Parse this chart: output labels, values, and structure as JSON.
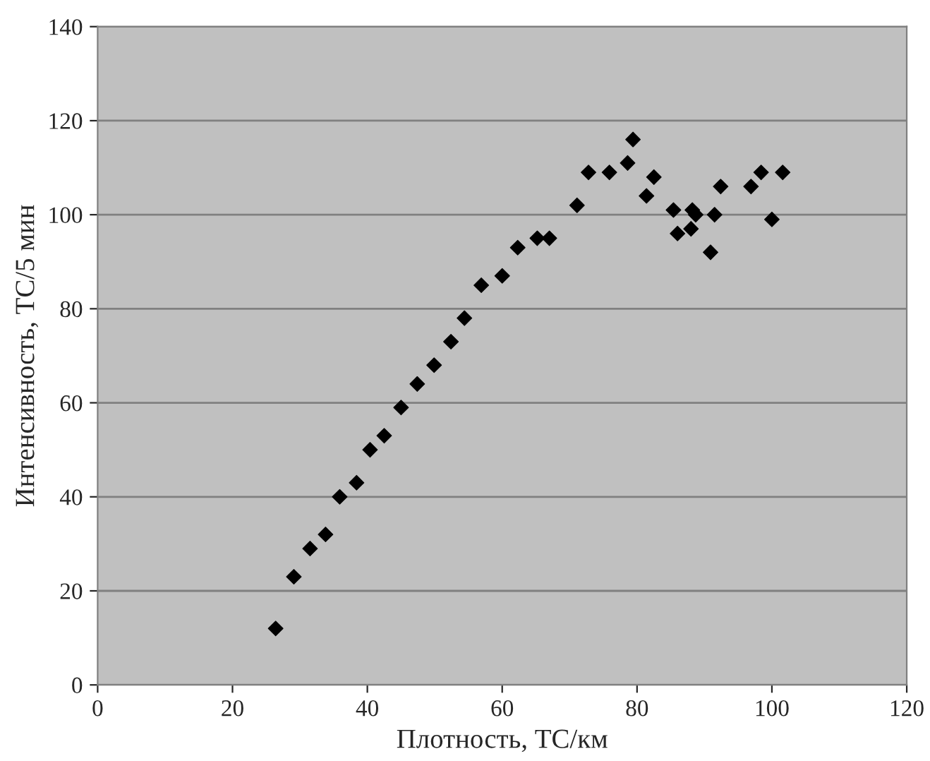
{
  "chart_data": {
    "type": "scatter",
    "xlabel": "Плотность, ТС/км",
    "ylabel": "Интенсивность, ТС/5 мин",
    "x": [
      26.4,
      29.1,
      31.5,
      33.8,
      35.9,
      38.4,
      40.4,
      42.5,
      45.0,
      47.4,
      49.9,
      52.4,
      54.4,
      56.9,
      60.0,
      62.3,
      65.2,
      67.0,
      71.1,
      72.8,
      75.9,
      78.6,
      79.4,
      81.4,
      82.5,
      85.4,
      86.0,
      88.2,
      88.7,
      88.0,
      90.9,
      91.5,
      92.4,
      96.9,
      98.4,
      100.0,
      101.6
    ],
    "series": [
      {
        "color": "#000000",
        "values": [
          12,
          23,
          29,
          32,
          40,
          43,
          50,
          53,
          59,
          64,
          68,
          73,
          78,
          85,
          87,
          93,
          95,
          95,
          102,
          109,
          109,
          111,
          116,
          104,
          108,
          101,
          96,
          101,
          100,
          97,
          92,
          100,
          106,
          106,
          109,
          99,
          109
        ]
      }
    ],
    "xlim": [
      0,
      120
    ],
    "xticks": [
      0,
      20,
      40,
      60,
      80,
      100,
      120
    ],
    "ylim": [
      0,
      140
    ],
    "yticks": [
      0,
      20,
      40,
      60,
      80,
      100,
      120,
      140
    ],
    "grid": "y",
    "marker": "diamond",
    "legend": false
  }
}
